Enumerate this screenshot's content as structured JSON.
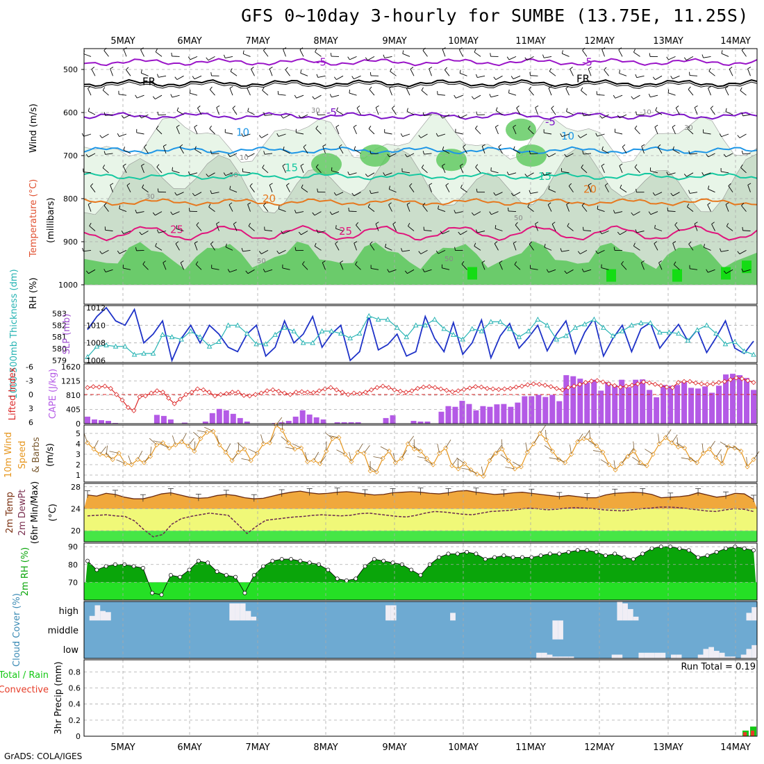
{
  "page": {
    "title": "GFS 0~10day 3-hourly for SUMBE (13.75E, 11.25S)",
    "credit": "GrADS: COLA/IGES"
  },
  "chart_data": [
    {
      "type": "contour",
      "name": "upper-air",
      "x_dates": [
        "5MAY",
        "6MAY",
        "7MAY",
        "8MAY",
        "9MAY",
        "10MAY",
        "11MAY",
        "12MAY",
        "13MAY",
        "14MAY"
      ],
      "ylabel_parts": [
        "RH (%)",
        "Temperature (°C)",
        "Wind (m/s)",
        "(millibars)"
      ],
      "y_ticks": [
        500,
        600,
        700,
        800,
        900,
        1000
      ],
      "ylim": [
        450,
        1000
      ],
      "temperature_contours": [
        {
          "label": "-5",
          "level": 483,
          "color": "#9a14c8",
          "label_text": "-5"
        },
        {
          "label": "FR",
          "level": 532,
          "color": "#000000",
          "label_text": "FR"
        },
        {
          "label": "-5",
          "level": 608,
          "color": "#7e14c8",
          "label_text": "-5"
        },
        {
          "label": "10",
          "level": 688,
          "color": "#1e96e6",
          "label_text": "10"
        },
        {
          "label": "15",
          "level": 748,
          "color": "#14c8a0",
          "label_text": "15"
        },
        {
          "label": "20",
          "level": 808,
          "color": "#e6781e",
          "label_text": "20"
        },
        {
          "label": "25",
          "level": 880,
          "color": "#e0147c",
          "label_text": "25"
        }
      ],
      "rh_labels": [
        "10",
        "30",
        "50",
        "70",
        "90"
      ]
    },
    {
      "type": "line",
      "name": "thickness-slp",
      "ylabel_left": "1000-500mb Thickness (dm)",
      "ylabel_right": "SLP (mb)",
      "thickness_ticks": [
        "583",
        "582",
        "581",
        "580",
        "579"
      ],
      "slp_ticks": [
        "1012",
        "1010",
        "1008",
        "1006"
      ],
      "slp_series": [
        1009.5,
        1011,
        1012,
        1010.5,
        1010,
        1011.8,
        1008,
        1009,
        1010.5,
        1006,
        1008.5,
        1010,
        1008,
        1010,
        1009,
        1007.5,
        1007,
        1009,
        1010,
        1006.5,
        1007.5,
        1010.5,
        1008,
        1009,
        1011,
        1007.5,
        1009,
        1010,
        1006,
        1007,
        1011,
        1007.2,
        1007.8,
        1009,
        1006.5,
        1007,
        1011,
        1008.5,
        1007,
        1010.3,
        1006.7,
        1008,
        1010.6,
        1006.3,
        1008.8,
        1010.2,
        1007.4,
        1008.6,
        1010,
        1007.1,
        1009,
        1010.5,
        1006.8,
        1009.2,
        1010.8,
        1006.5,
        1008.5,
        1010,
        1007,
        1009.6,
        1010.3,
        1007.4,
        1008.8,
        1010.1,
        1008.2,
        1009.5,
        1006.9,
        1008.6,
        1010.5,
        1007.4,
        1006.8,
        1008.2
      ],
      "thickness_series": [
        579.3,
        580.2,
        580.3,
        580.2,
        580.2,
        579.5,
        579.6,
        579.6,
        581.2,
        581,
        580.8,
        581.5,
        581,
        580.2,
        580.6,
        582,
        582,
        581.3,
        580.4,
        580.4,
        581.2,
        581.8,
        581.5,
        580.5,
        580.5,
        581.5,
        581.5,
        581.3,
        580.9,
        581.3,
        582.8,
        582.5,
        582.5,
        581.8,
        581,
        582,
        582,
        582.5,
        581.7,
        581.2,
        580.8,
        581.7,
        581.5,
        582.3,
        582.3,
        581.7,
        581,
        581.5,
        582.5,
        582,
        580.8,
        581.1,
        581.8,
        582.1,
        582.5,
        581.8,
        581.1,
        581.5,
        582,
        582.2,
        582.2,
        581.4,
        581.4,
        581.3,
        580.7,
        581.6,
        582,
        581.3,
        580.4,
        580.6,
        579.8,
        579.5
      ]
    },
    {
      "type": "bar+line",
      "name": "lifted-cape",
      "ylabel_left": "Lifted Index",
      "ylabel_right": "CAPE (J/kg)",
      "li_ticks": [
        "-6",
        "-3",
        "0",
        "3",
        "6"
      ],
      "cape_ticks": [
        "1620",
        "1215",
        "810",
        "405",
        "0"
      ],
      "cape_values": [
        200,
        120,
        100,
        80,
        20,
        0,
        0,
        0,
        0,
        0,
        250,
        220,
        120,
        0,
        30,
        0,
        0,
        60,
        300,
        420,
        380,
        280,
        160,
        60,
        0,
        0,
        0,
        20,
        40,
        80,
        200,
        380,
        260,
        180,
        120,
        0,
        40,
        40,
        40,
        40,
        0,
        0,
        0,
        160,
        240,
        0,
        0,
        80,
        60,
        60,
        0,
        340,
        500,
        480,
        650,
        560,
        380,
        500,
        480,
        550,
        560,
        480,
        600,
        780,
        780,
        820,
        760,
        820,
        640,
        1380,
        1350,
        1280,
        1170,
        1250,
        940,
        1180,
        1100,
        1250,
        1040,
        1250,
        1260,
        960,
        750,
        1100,
        1080,
        1100,
        1180,
        1020,
        1000,
        1060,
        880,
        1080,
        1400,
        1420,
        1380,
        1300,
        960
      ],
      "li_values": [
        -1.5,
        -1.7,
        -1.6,
        -1.8,
        -1.3,
        0,
        1.2,
        2.8,
        3.5,
        0.5,
        0.3,
        -0.3,
        -0.8,
        -0.5,
        0.8,
        2,
        1,
        0,
        -0.5,
        -1.2,
        -1,
        -0.5,
        0.3,
        0,
        -0.2,
        -0.5,
        -0.5,
        0.2,
        0.3,
        0,
        -0.3,
        -0.8,
        -1,
        -0.7,
        -0.3,
        0,
        -0.5,
        -0.6,
        -0.5,
        -0.4,
        -0.8,
        -1.2,
        -1.5,
        -1,
        -0.5,
        0,
        -0.3,
        -0.2,
        -0.5,
        -1,
        -1.5,
        -1.8,
        -1.5,
        -1,
        -0.7,
        -0.5,
        -0.8,
        -1.3,
        -1.6,
        -1.7,
        -1.5,
        -1.2,
        -0.9,
        -0.6,
        -0.8,
        -1.1,
        -1.4,
        -1.7,
        -1.6,
        -1.3,
        -1.2,
        -1.1,
        -1.2,
        -1.3,
        -1.6,
        -1.8,
        -2.1,
        -2.3,
        -2.2,
        -2,
        -1.7,
        -1.3,
        -1,
        -1.5,
        -1.8,
        -2.2,
        -2.6,
        -2.9,
        -3,
        -2.7,
        -2.3,
        -1.9,
        -1.6,
        -1.8,
        -2,
        -2.3,
        -2.7,
        -2.5,
        -2.2,
        -1.9,
        -1.6,
        -1.5,
        -2.6,
        -2.8,
        -2.8,
        -2.5,
        -2.3,
        -2.2,
        -2.3,
        -2.6,
        -2.8,
        -3.2,
        -3.6,
        -3.4,
        -3,
        -2.6
      ]
    },
    {
      "type": "line",
      "name": "wind-speed",
      "ylabel": "10m Wind Speed & Barbs (m/s)",
      "y_ticks": [
        "5",
        "4",
        "3",
        "2",
        "1"
      ],
      "values": [
        4.1,
        3.5,
        3,
        2.9,
        2.5,
        3.1,
        2.1,
        2,
        2.5,
        2.2,
        2.8,
        3.9,
        4.1,
        3.6,
        3.9,
        4.2,
        3.8,
        3.3,
        4.5,
        5.1,
        5.2,
        3.9,
        3.2,
        2.4,
        3.2,
        3.5,
        2.4,
        3.1,
        4,
        4.1,
        5.8,
        5.3,
        4.1,
        3.5,
        3.6,
        2.3,
        2.4,
        2.1,
        3.3,
        4.5,
        4.6,
        3,
        2.3,
        3.2,
        3.1,
        1.4,
        1.3,
        2.6,
        3.3,
        2.2,
        2.6,
        4,
        3.5,
        3.3,
        2.6,
        2,
        3.1,
        3.6,
        1.9,
        1.6,
        2.1,
        1.5,
        1.1,
        0.9,
        2.4,
        3.1,
        3.5,
        2.4,
        1.6,
        1.8,
        3.2,
        4,
        5,
        4.4,
        3.3,
        2.5,
        2.2,
        3,
        4.2,
        4.5,
        4.4,
        3.8,
        3.2,
        2,
        1.5,
        2.1,
        2.8,
        3.3,
        2.2,
        1.9,
        3,
        4,
        4.6,
        4.1,
        3.7,
        3.6,
        2.5,
        2.2,
        3.1,
        3.5,
        2.7,
        2.1,
        3.7,
        3.6,
        3.3,
        1.8,
        2.5
      ]
    },
    {
      "type": "area",
      "name": "temp-dewpt",
      "ylabel": "2m Temp 2m DewPt (6hr Min/Max) (°C)",
      "y_ticks": [
        "28",
        "24",
        "20"
      ],
      "temp_values": [
        26.5,
        26.3,
        26.8,
        26.6,
        26.1,
        25.8,
        25.8,
        26.2,
        26.7,
        26.9,
        26.5,
        26.1,
        25.9,
        26,
        26.4,
        26.6,
        26.4,
        26,
        25.8,
        25.9,
        26.3,
        26.7,
        27,
        27.2,
        26.9,
        26.7,
        26.8,
        27,
        27.1,
        26.9,
        26.7,
        26.5,
        26.6,
        26.9,
        27,
        27.1,
        27,
        26.8,
        26.7,
        26.9,
        27.2,
        27.3,
        27,
        26.8,
        26.6,
        26.7,
        26.9,
        27,
        26.8,
        26.6,
        26.4,
        26.2,
        26.4,
        26.2,
        26,
        26,
        26.5,
        26.8,
        26.9,
        27,
        26.9,
        26.6,
        26,
        26.1,
        26.2,
        26.4,
        26.9,
        26.5,
        26.1,
        26.3,
        26.8,
        26.7,
        25.7
      ],
      "dew_values": [
        22.7,
        22.8,
        22.9,
        22.7,
        22.6,
        21.8,
        20.2,
        18.9,
        19.3,
        21.2,
        22.2,
        22.6,
        22.9,
        23.2,
        23,
        22.8,
        21.2,
        19.5,
        20.8,
        21.9,
        22.1,
        22.3,
        22.5,
        22.6,
        22.8,
        22.9,
        22.8,
        22.7,
        22.8,
        23.1,
        23.2,
        23,
        22.8,
        22.6,
        22.5,
        22.8,
        23.2,
        23.5,
        23.4,
        23.2,
        23,
        22.9,
        23.2,
        23.5,
        23.6,
        23.7,
        23.9,
        24.1,
        24,
        23.8,
        23.9,
        24.1,
        24.2,
        24.1,
        24,
        23.8,
        23.7,
        23.6,
        23.8,
        24,
        24.1,
        24.3,
        24.3,
        24.2,
        24,
        23.8,
        23.6,
        23.5,
        23.8,
        24,
        23.9,
        23.5
      ]
    },
    {
      "type": "area",
      "name": "rh2m",
      "ylabel": "2m RH (%)",
      "y_ticks": [
        "90",
        "80",
        "70"
      ],
      "values": [
        82,
        77,
        79,
        80,
        80,
        79,
        78,
        64,
        63,
        74,
        73,
        77,
        82,
        81,
        76,
        74,
        73,
        64,
        74,
        79,
        82,
        83,
        83,
        82,
        81,
        80,
        77,
        72,
        71,
        72,
        79,
        83,
        82,
        81,
        80,
        77,
        74,
        80,
        84,
        86,
        86,
        87,
        86,
        83,
        84,
        85,
        84,
        84,
        84,
        85,
        86,
        86,
        87,
        88,
        88,
        87,
        85,
        86,
        84,
        83,
        86,
        89,
        90,
        90,
        89,
        88,
        84,
        85,
        87,
        89,
        90,
        89,
        88
      ]
    },
    {
      "type": "bar",
      "name": "cloud-cover",
      "ylabel": "Cloud Cover (%)",
      "levels": [
        "high",
        "middle",
        "low"
      ],
      "high_values": [
        0,
        12,
        40,
        25,
        22,
        0,
        0,
        0,
        0,
        0,
        0,
        0,
        0,
        0,
        0,
        0,
        0,
        0,
        0,
        0,
        0,
        0,
        0,
        0,
        0,
        0,
        0,
        45,
        45,
        45,
        25,
        10,
        0,
        0,
        0,
        0,
        0,
        0,
        0,
        0,
        0,
        0,
        0,
        0,
        0,
        0,
        0,
        0,
        0,
        0,
        0,
        0,
        0,
        0,
        0,
        0,
        40,
        40,
        0,
        0,
        0,
        0,
        0,
        0,
        0,
        0,
        0,
        0,
        20,
        0,
        0,
        0,
        0,
        0,
        0,
        0,
        0,
        0,
        0,
        0,
        0,
        0,
        0,
        0,
        0,
        0,
        0,
        0,
        0,
        0,
        0,
        0,
        0,
        0,
        0,
        0,
        0,
        0,
        0,
        50,
        45,
        30,
        10,
        0,
        0,
        0,
        0,
        0,
        0,
        0,
        0,
        0,
        0,
        0,
        0,
        0,
        0,
        0,
        0,
        0,
        0,
        0,
        0,
        20,
        35
      ],
      "middle_values": [
        0,
        0,
        0,
        0,
        0,
        0,
        0,
        0,
        0,
        0,
        0,
        0,
        0,
        0,
        0,
        0,
        0,
        0,
        0,
        0,
        0,
        0,
        0,
        0,
        0,
        0,
        0,
        0,
        0,
        0,
        0,
        0,
        0,
        0,
        0,
        0,
        0,
        0,
        0,
        0,
        0,
        0,
        0,
        0,
        0,
        0,
        0,
        0,
        0,
        0,
        0,
        0,
        0,
        0,
        0,
        0,
        0,
        0,
        0,
        0,
        0,
        0,
        0,
        0,
        0,
        0,
        0,
        0,
        0,
        0,
        0,
        0,
        0,
        0,
        0,
        0,
        0,
        0,
        0,
        0,
        0,
        0,
        0,
        0,
        0,
        0,
        0,
        70,
        60,
        0,
        0,
        0,
        0,
        0,
        0,
        0,
        0,
        0,
        0,
        0,
        0,
        0,
        0,
        0,
        0,
        0,
        0,
        0,
        0,
        0,
        0,
        0,
        0,
        0,
        0,
        0,
        0,
        0,
        0,
        0,
        0,
        0,
        0,
        0,
        0
      ],
      "low_values": [
        0,
        0,
        0,
        0,
        0,
        0,
        0,
        0,
        0,
        0,
        0,
        0,
        0,
        0,
        0,
        0,
        0,
        0,
        0,
        0,
        0,
        0,
        0,
        0,
        0,
        0,
        0,
        0,
        0,
        0,
        0,
        0,
        0,
        0,
        0,
        0,
        0,
        0,
        0,
        0,
        0,
        0,
        0,
        0,
        0,
        0,
        0,
        0,
        0,
        0,
        0,
        0,
        0,
        0,
        0,
        0,
        0,
        0,
        0,
        0,
        0,
        0,
        0,
        0,
        0,
        0,
        0,
        0,
        0,
        0,
        0,
        0,
        0,
        0,
        0,
        0,
        0,
        0,
        0,
        0,
        0,
        0,
        0,
        0,
        15,
        15,
        10,
        5,
        5,
        5,
        5,
        0,
        0,
        0,
        0,
        0,
        0,
        0,
        10,
        10,
        0,
        0,
        0,
        15,
        15,
        15,
        15,
        15,
        0,
        10,
        10,
        0,
        0,
        0,
        10,
        25,
        30,
        20,
        15,
        5,
        5,
        0,
        10,
        25,
        35
      ]
    },
    {
      "type": "bar",
      "name": "precip",
      "ylabel": "3hr Precip (mm)",
      "legend_left": [
        "Total / Rain",
        "Convective"
      ],
      "y_ticks": [
        "0.8",
        "0.6",
        "0.4",
        "0.2",
        "0"
      ],
      "run_total_label": "Run Total = 0.19",
      "values_total": [
        0.07,
        0.12
      ],
      "values_convective": [
        0.05,
        0.07
      ]
    }
  ],
  "colors": {
    "rh_light": "#e8f5e8",
    "rh_mid": "#c8dcc8",
    "rh_dark": "#a0b8a0",
    "rh_green": "#5ac85a",
    "rh_bright": "#14dc14",
    "slp": "#1e32c8",
    "thickness": "#28b4b4",
    "cape": "#b45ae6",
    "li": "#dc2828",
    "wind": "#e6961e",
    "temp": "#f0a83c",
    "dew": "#f0f878",
    "rh2m_dark": "#0aa50a",
    "rh2m_light": "#28e628",
    "cloud": "#6eaad2"
  }
}
